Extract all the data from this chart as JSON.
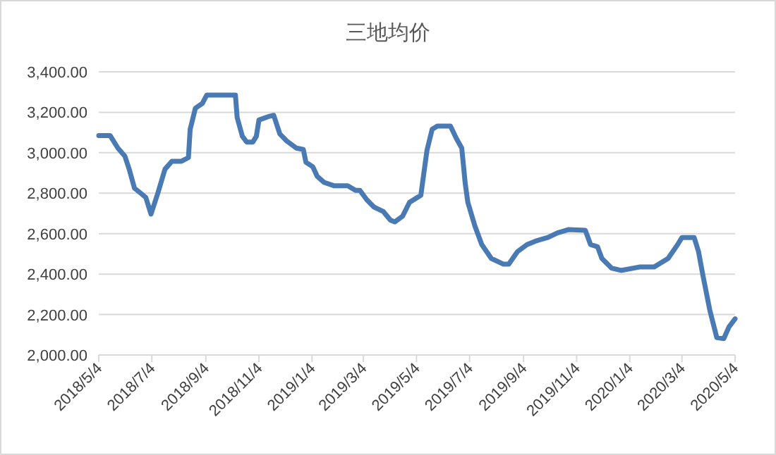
{
  "chart_data": {
    "type": "line",
    "title": "三地均价",
    "x": [
      "2018-05-04",
      "2018-05-17",
      "2018-05-26",
      "2018-06-03",
      "2018-06-08",
      "2018-06-14",
      "2018-06-22",
      "2018-06-27",
      "2018-07-03",
      "2018-07-11",
      "2018-07-19",
      "2018-07-27",
      "2018-08-07",
      "2018-08-15",
      "2018-08-17",
      "2018-08-23",
      "2018-08-31",
      "2018-09-05",
      "2018-10-08",
      "2018-10-10",
      "2018-10-16",
      "2018-10-21",
      "2018-10-28",
      "2018-11-01",
      "2018-11-04",
      "2018-11-15",
      "2018-11-21",
      "2018-11-28",
      "2018-12-06",
      "2018-12-17",
      "2018-12-25",
      "2018-12-28",
      "2019-01-05",
      "2019-01-10",
      "2019-01-18",
      "2019-01-29",
      "2019-02-14",
      "2019-02-23",
      "2019-02-28",
      "2019-03-08",
      "2019-03-16",
      "2019-03-27",
      "2019-04-04",
      "2019-04-09",
      "2019-04-18",
      "2019-04-26",
      "2019-05-09",
      "2019-05-16",
      "2019-05-22",
      "2019-05-28",
      "2019-06-12",
      "2019-06-19",
      "2019-06-25",
      "2019-06-29",
      "2019-07-02",
      "2019-07-10",
      "2019-07-18",
      "2019-07-29",
      "2019-08-12",
      "2019-08-18",
      "2019-08-28",
      "2019-09-08",
      "2019-09-19",
      "2019-10-02",
      "2019-10-13",
      "2019-10-26",
      "2019-11-14",
      "2019-11-20",
      "2019-11-28",
      "2019-12-03",
      "2019-12-14",
      "2019-12-25",
      "2020-01-15",
      "2020-02-01",
      "2020-02-17",
      "2020-02-28",
      "2020-03-04",
      "2020-03-18",
      "2020-03-23",
      "2020-03-28",
      "2020-04-05",
      "2020-04-13",
      "2020-04-21",
      "2020-04-27",
      "2020-05-04"
    ],
    "series": [
      {
        "color": "#4a7ab3",
        "values": [
          3085,
          3085,
          3023,
          2983,
          2918,
          2825,
          2797,
          2779,
          2697,
          2802,
          2918,
          2958,
          2958,
          2976,
          3116,
          3220,
          3244,
          3285,
          3285,
          3174,
          3081,
          3053,
          3053,
          3081,
          3162,
          3179,
          3185,
          3093,
          3058,
          3023,
          3016,
          2953,
          2930,
          2883,
          2853,
          2837,
          2837,
          2814,
          2814,
          2767,
          2732,
          2709,
          2667,
          2658,
          2686,
          2755,
          2790,
          3011,
          3116,
          3132,
          3132,
          3069,
          3023,
          2848,
          2755,
          2639,
          2546,
          2477,
          2449,
          2449,
          2511,
          2546,
          2565,
          2581,
          2604,
          2620,
          2616,
          2546,
          2535,
          2477,
          2430,
          2418,
          2435,
          2435,
          2477,
          2546,
          2581,
          2581,
          2511,
          2395,
          2221,
          2086,
          2081,
          2139,
          2179
        ]
      }
    ],
    "xlim": [
      "2018-05-04",
      "2020-05-04"
    ],
    "xticks": [
      {
        "value": "2018-05-04",
        "label": "2018/5/4"
      },
      {
        "value": "2018-07-04",
        "label": "2018/7/4"
      },
      {
        "value": "2018-09-04",
        "label": "2018/9/4"
      },
      {
        "value": "2018-11-04",
        "label": "2018/11/4"
      },
      {
        "value": "2019-01-04",
        "label": "2019/1/4"
      },
      {
        "value": "2019-03-04",
        "label": "2019/3/4"
      },
      {
        "value": "2019-05-04",
        "label": "2019/5/4"
      },
      {
        "value": "2019-07-04",
        "label": "2019/7/4"
      },
      {
        "value": "2019-09-04",
        "label": "2019/9/4"
      },
      {
        "value": "2019-11-04",
        "label": "2019/11/4"
      },
      {
        "value": "2020-01-04",
        "label": "2020/1/4"
      },
      {
        "value": "2020-03-04",
        "label": "2020/3/4"
      },
      {
        "value": "2020-05-04",
        "label": "2020/5/4"
      }
    ],
    "ylim": [
      2000,
      3400
    ],
    "yticks": [
      {
        "value": 2000,
        "label": "2,000.00"
      },
      {
        "value": 2200,
        "label": "2,200.00"
      },
      {
        "value": 2400,
        "label": "2,400.00"
      },
      {
        "value": 2600,
        "label": "2,600.00"
      },
      {
        "value": 2800,
        "label": "2,800.00"
      },
      {
        "value": 3000,
        "label": "3,000.00"
      },
      {
        "value": 3200,
        "label": "3,200.00"
      },
      {
        "value": 3400,
        "label": "3,400.00"
      }
    ],
    "grid": "y",
    "marker": "none",
    "line_style": "solid"
  }
}
